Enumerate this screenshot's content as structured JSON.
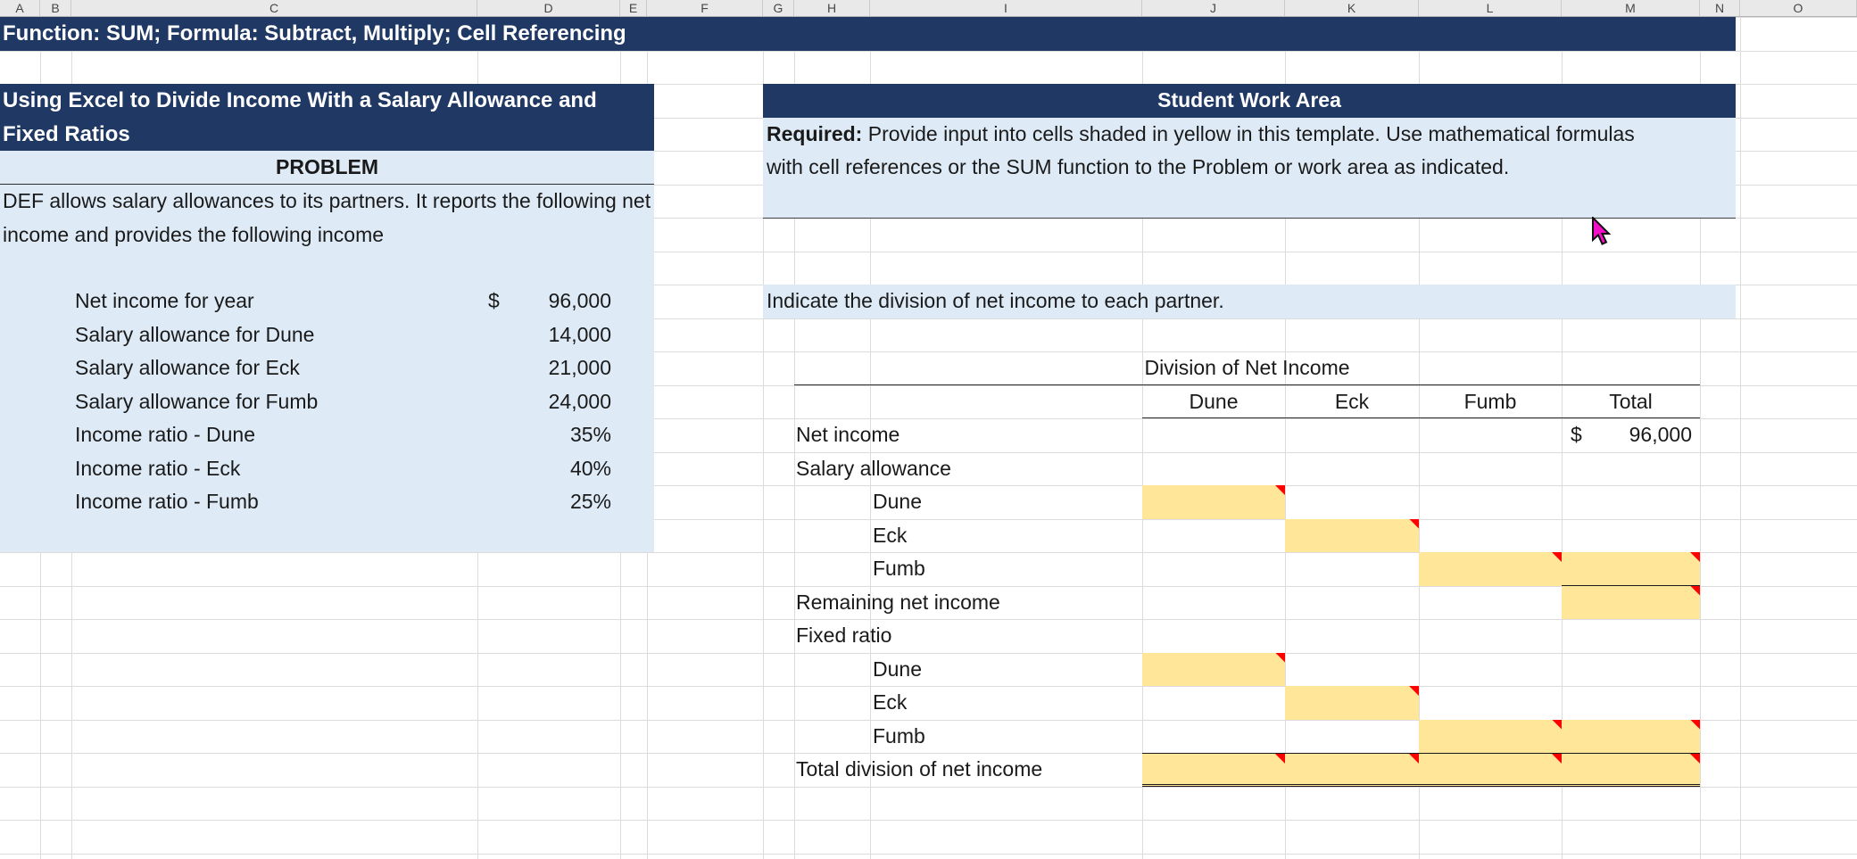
{
  "sheet_columns": [
    "A",
    "B",
    "C",
    "D",
    "E",
    "F",
    "G",
    "H",
    "I",
    "J",
    "K",
    "L",
    "M",
    "N",
    "O"
  ],
  "top_banner": {
    "text": "Function: SUM; Formula: Subtract, Multiply; Cell Referencing"
  },
  "problem_panel": {
    "title": "Using Excel to Divide Income With a Salary Allowance and Fixed Ratios",
    "heading": "PROBLEM",
    "description": "DEF allows salary allowances to its partners. It reports the following net income and provides the following income",
    "items": [
      {
        "label": "Net income for year",
        "currency": "$",
        "value": "96,000"
      },
      {
        "label": "Salary allowance for Dune",
        "value": "14,000"
      },
      {
        "label": "Salary allowance for Eck",
        "value": "21,000"
      },
      {
        "label": "Salary allowance for Fumb",
        "value": "24,000"
      },
      {
        "label": "Income ratio - Dune",
        "value": "35%"
      },
      {
        "label": "Income ratio - Eck",
        "value": "40%"
      },
      {
        "label": "Income ratio - Fumb",
        "value": "25%"
      }
    ]
  },
  "work_area": {
    "title": "Student Work Area",
    "required_label": "Required:",
    "required_text": " Provide input into cells shaded in yellow in this template. Use mathematical formulas with cell references or the SUM function to the Problem or work area as indicated.",
    "instruction": "Indicate the division of net income to each partner."
  },
  "division_table": {
    "title": "Division of Net Income",
    "columns": [
      "Dune",
      "Eck",
      "Fumb",
      "Total"
    ],
    "rows": [
      {
        "label": "Net income",
        "total_currency": "$",
        "total_value": "96,000"
      },
      {
        "label": "Salary allowance"
      },
      {
        "label": "Dune"
      },
      {
        "label": "Eck"
      },
      {
        "label": "Fumb"
      },
      {
        "label": "Remaining net income"
      },
      {
        "label": "Fixed ratio"
      },
      {
        "label": "Dune"
      },
      {
        "label": "Eck"
      },
      {
        "label": "Fumb"
      },
      {
        "label": "Total division of net income"
      }
    ]
  },
  "colors": {
    "navy": "#1f3864",
    "panelblue": "#deebf7",
    "yellow": "#ffe699",
    "red": "#ff0000",
    "pink": "#f20fc6"
  }
}
